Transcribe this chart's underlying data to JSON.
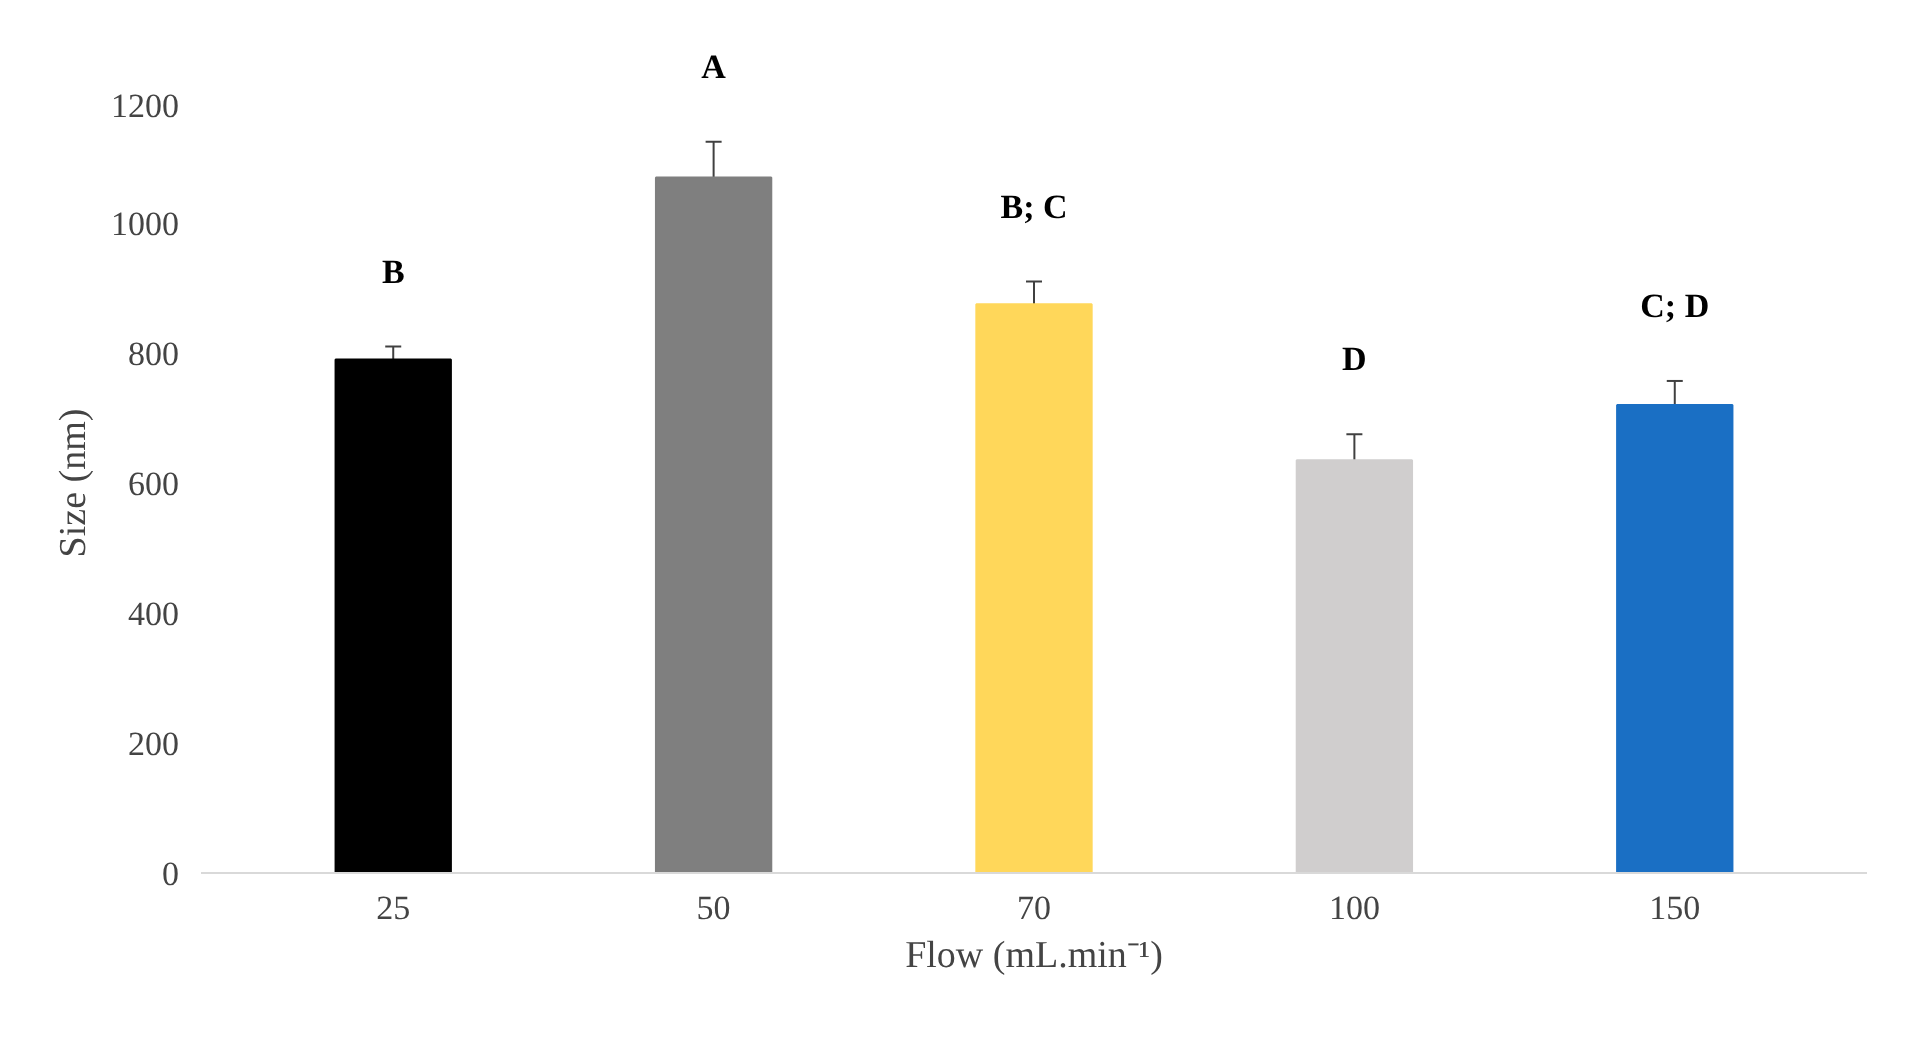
{
  "chart_data": {
    "type": "bar",
    "xlabel": "Flow (mL.min⁻¹)",
    "ylabel": "Size (nm)",
    "categories": [
      "25",
      "50",
      "70",
      "100",
      "150"
    ],
    "values": [
      790,
      1070,
      875,
      635,
      720
    ],
    "errors": [
      20,
      55,
      35,
      40,
      37
    ],
    "colors": [
      "#000000",
      "#7f7f7f",
      "#ffd75a",
      "#d0cece",
      "#1a6fc4"
    ],
    "ylim": [
      0,
      1200
    ],
    "yticks": [
      0,
      200,
      400,
      600,
      800,
      1000,
      1200
    ],
    "grid": false,
    "annotations": [
      "B",
      "A",
      "B; C",
      "D",
      "C; D"
    ]
  }
}
